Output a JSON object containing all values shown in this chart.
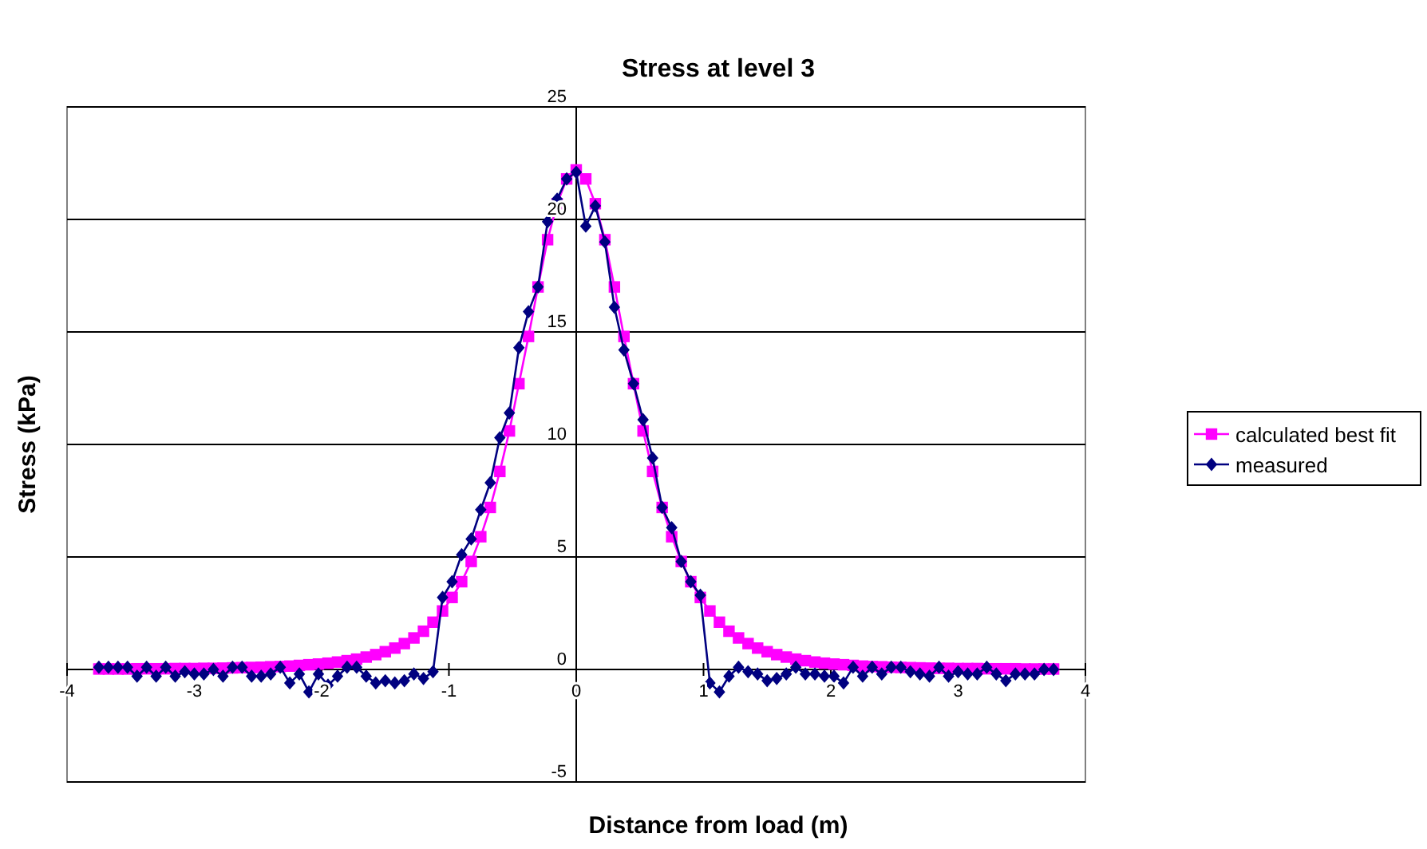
{
  "chart_data": {
    "type": "line",
    "title": "Stress at level 3",
    "xlabel": "Distance from load (m)",
    "ylabel": "Stress (kPa)",
    "x": [
      -3.75,
      -3.675,
      -3.6,
      -3.525,
      -3.45,
      -3.375,
      -3.3,
      -3.225,
      -3.15,
      -3.075,
      -3.0,
      -2.925,
      -2.85,
      -2.775,
      -2.7,
      -2.625,
      -2.55,
      -2.475,
      -2.4,
      -2.325,
      -2.25,
      -2.175,
      -2.1,
      -2.025,
      -1.95,
      -1.875,
      -1.8,
      -1.725,
      -1.65,
      -1.575,
      -1.5,
      -1.425,
      -1.35,
      -1.275,
      -1.2,
      -1.125,
      -1.05,
      -0.975,
      -0.9,
      -0.825,
      -0.75,
      -0.675,
      -0.6,
      -0.525,
      -0.45,
      -0.375,
      -0.3,
      -0.225,
      -0.15,
      -0.075,
      0,
      0.075,
      0.15,
      0.225,
      0.3,
      0.375,
      0.45,
      0.525,
      0.6,
      0.675,
      0.75,
      0.825,
      0.9,
      0.975,
      1.05,
      1.125,
      1.2,
      1.275,
      1.35,
      1.425,
      1.5,
      1.575,
      1.65,
      1.725,
      1.8,
      1.875,
      1.95,
      2.025,
      2.1,
      2.175,
      2.25,
      2.325,
      2.4,
      2.475,
      2.55,
      2.625,
      2.7,
      2.775,
      2.85,
      2.925,
      3.0,
      3.075,
      3.15,
      3.225,
      3.3,
      3.375,
      3.45,
      3.525,
      3.6,
      3.675,
      3.75
    ],
    "series": [
      {
        "name": "calculated best fit",
        "color": "#ff00ff",
        "marker": "square",
        "values": [
          0.02,
          0.02,
          0.02,
          0.02,
          0.03,
          0.03,
          0.03,
          0.03,
          0.04,
          0.04,
          0.04,
          0.05,
          0.05,
          0.06,
          0.07,
          0.08,
          0.09,
          0.1,
          0.12,
          0.13,
          0.15,
          0.18,
          0.21,
          0.24,
          0.28,
          0.33,
          0.39,
          0.46,
          0.55,
          0.66,
          0.79,
          0.95,
          1.15,
          1.4,
          1.7,
          2.1,
          2.6,
          3.2,
          3.9,
          4.8,
          5.9,
          7.2,
          8.8,
          10.6,
          12.7,
          14.8,
          17.0,
          19.1,
          20.7,
          21.8,
          22.2,
          21.8,
          20.7,
          19.1,
          17.0,
          14.8,
          12.7,
          10.6,
          8.8,
          7.2,
          5.9,
          4.8,
          3.9,
          3.2,
          2.6,
          2.1,
          1.7,
          1.4,
          1.15,
          0.95,
          0.79,
          0.66,
          0.55,
          0.46,
          0.39,
          0.33,
          0.28,
          0.24,
          0.21,
          0.18,
          0.15,
          0.13,
          0.12,
          0.1,
          0.09,
          0.08,
          0.07,
          0.06,
          0.05,
          0.05,
          0.04,
          0.04,
          0.04,
          0.03,
          0.03,
          0.03,
          0.03,
          0.02,
          0.02,
          0.02,
          0.02
        ]
      },
      {
        "name": "measured",
        "color": "#000080",
        "marker": "diamond",
        "values": [
          0.1,
          0.1,
          0.1,
          0.1,
          -0.3,
          0.1,
          -0.3,
          0.1,
          -0.3,
          -0.1,
          -0.2,
          -0.2,
          0.0,
          -0.3,
          0.1,
          0.1,
          -0.3,
          -0.3,
          -0.2,
          0.1,
          -0.6,
          -0.2,
          -1.0,
          -0.2,
          -0.7,
          -0.3,
          0.1,
          0.1,
          -0.3,
          -0.6,
          -0.5,
          -0.6,
          -0.5,
          -0.2,
          -0.4,
          -0.1,
          3.2,
          3.9,
          5.1,
          5.8,
          7.1,
          8.3,
          10.3,
          11.4,
          14.3,
          15.9,
          17.0,
          19.9,
          20.9,
          21.8,
          22.1,
          19.7,
          20.6,
          19.0,
          16.1,
          14.2,
          12.7,
          11.1,
          9.4,
          7.2,
          6.3,
          4.8,
          3.9,
          3.3,
          -0.6,
          -1.0,
          -0.3,
          0.1,
          -0.1,
          -0.2,
          -0.5,
          -0.4,
          -0.2,
          0.1,
          -0.2,
          -0.2,
          -0.3,
          -0.3,
          -0.6,
          0.1,
          -0.3,
          0.1,
          -0.2,
          0.1,
          0.1,
          -0.1,
          -0.2,
          -0.3,
          0.1,
          -0.3,
          -0.1,
          -0.2,
          -0.2,
          0.1,
          -0.2,
          -0.5,
          -0.2,
          -0.2,
          -0.2,
          0.0,
          0.0
        ]
      }
    ],
    "xlim": [
      -4,
      4
    ],
    "xticks": [
      -4,
      -3,
      -2,
      -1,
      0,
      1,
      2,
      3,
      4
    ],
    "ylim": [
      -5,
      25
    ],
    "yticks": [
      -5,
      0,
      5,
      10,
      15,
      20,
      25
    ],
    "grid": "y",
    "legend": "right",
    "line_style": "solid"
  }
}
